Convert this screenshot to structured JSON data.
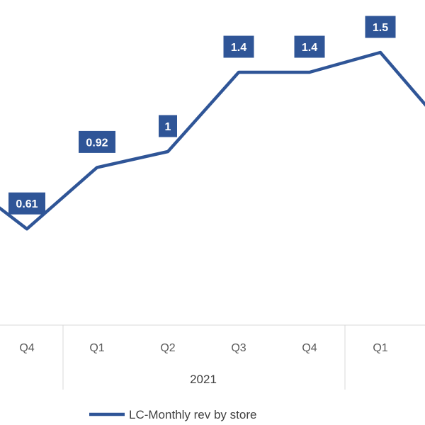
{
  "chart_data": {
    "type": "line",
    "categories": [
      "Q4",
      "Q1",
      "Q2",
      "Q3",
      "Q4",
      "Q1"
    ],
    "category_groups": [
      {
        "label": "2021",
        "categories": [
          "Q1",
          "Q2",
          "Q3",
          "Q4"
        ]
      }
    ],
    "series": [
      {
        "name": "LC-Monthly rev by store",
        "values": [
          0.61,
          0.92,
          1,
          1.4,
          1.4,
          1.5
        ],
        "data_labels": [
          "0.61",
          "0.92",
          "1",
          "1.4",
          "1.4",
          "1.5"
        ],
        "color": "#2F5597"
      }
    ],
    "legend": "bottom",
    "grid": false,
    "data_label_style": {
      "background": "#2F5597",
      "text_color": "#ffffff"
    }
  }
}
